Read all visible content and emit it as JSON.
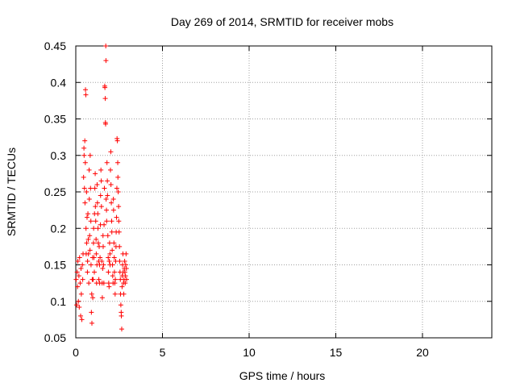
{
  "chart_data": {
    "type": "scatter",
    "title": "Day 269 of 2014, SRMTID for receiver mobs",
    "xlabel": "GPS time / hours",
    "ylabel": "SRMTID / TECUs",
    "xlim": [
      0,
      24
    ],
    "ylim": [
      0.05,
      0.45
    ],
    "x_ticks": [
      0,
      5,
      10,
      15,
      20
    ],
    "y_ticks": [
      0.05,
      0.1,
      0.15,
      0.2,
      0.25,
      0.3,
      0.35,
      0.4,
      0.45
    ],
    "x_tick_labels": [
      "0",
      "5",
      "10",
      "15",
      "20"
    ],
    "y_tick_labels": [
      "0.05",
      "0.1",
      "0.15",
      "0.2",
      "0.25",
      "0.3",
      "0.35",
      "0.4",
      "0.45"
    ],
    "grid": true,
    "grid_style": "dotted",
    "marker": "+",
    "series": [
      {
        "color": "#ff0000",
        "points": [
          [
            0.02,
            0.13
          ],
          [
            0.05,
            0.095
          ],
          [
            0.08,
            0.14
          ],
          [
            0.1,
            0.12
          ],
          [
            0.12,
            0.155
          ],
          [
            0.15,
            0.1
          ],
          [
            0.18,
            0.135
          ],
          [
            0.2,
            0.092
          ],
          [
            0.22,
            0.16
          ],
          [
            0.25,
            0.125
          ],
          [
            0.28,
            0.08
          ],
          [
            0.3,
            0.145
          ],
          [
            0.32,
            0.11
          ],
          [
            0.35,
            0.075
          ],
          [
            0.38,
            0.15
          ],
          [
            0.4,
            0.13
          ],
          [
            0.42,
            0.165
          ],
          [
            0.45,
            0.27
          ],
          [
            0.47,
            0.31
          ],
          [
            0.48,
            0.3
          ],
          [
            0.5,
            0.255
          ],
          [
            0.52,
            0.32
          ],
          [
            0.53,
            0.235
          ],
          [
            0.55,
            0.29
          ],
          [
            0.56,
            0.39
          ],
          [
            0.58,
            0.383
          ],
          [
            0.59,
            0.2
          ],
          [
            0.6,
            0.165
          ],
          [
            0.62,
            0.25
          ],
          [
            0.63,
            0.18
          ],
          [
            0.65,
            0.215
          ],
          [
            0.67,
            0.14
          ],
          [
            0.68,
            0.155
          ],
          [
            0.7,
            0.22
          ],
          [
            0.72,
            0.185
          ],
          [
            0.73,
            0.165
          ],
          [
            0.75,
            0.125
          ],
          [
            0.77,
            0.28
          ],
          [
            0.78,
            0.24
          ],
          [
            0.8,
            0.19
          ],
          [
            0.82,
            0.17
          ],
          [
            0.83,
            0.3
          ],
          [
            0.85,
            0.255
          ],
          [
            0.87,
            0.21
          ],
          [
            0.88,
            0.15
          ],
          [
            0.9,
            0.085
          ],
          [
            0.92,
            0.11
          ],
          [
            0.93,
            0.07
          ],
          [
            0.95,
            0.13
          ],
          [
            0.97,
            0.16
          ],
          [
            0.98,
            0.105
          ],
          [
            1.0,
            0.13
          ],
          [
            1.02,
            0.18
          ],
          [
            1.03,
            0.2
          ],
          [
            1.05,
            0.16
          ],
          [
            1.07,
            0.14
          ],
          [
            1.08,
            0.22
          ],
          [
            1.1,
            0.255
          ],
          [
            1.12,
            0.275
          ],
          [
            1.13,
            0.23
          ],
          [
            1.15,
            0.21
          ],
          [
            1.17,
            0.185
          ],
          [
            1.18,
            0.165
          ],
          [
            1.2,
            0.125
          ],
          [
            1.22,
            0.15
          ],
          [
            1.23,
            0.26
          ],
          [
            1.25,
            0.235
          ],
          [
            1.27,
            0.22
          ],
          [
            1.28,
            0.2
          ],
          [
            1.3,
            0.18
          ],
          [
            1.32,
            0.155
          ],
          [
            1.33,
            0.13
          ],
          [
            1.35,
            0.175
          ],
          [
            1.37,
            0.15
          ],
          [
            1.38,
            0.125
          ],
          [
            1.4,
            0.16
          ],
          [
            1.42,
            0.205
          ],
          [
            1.43,
            0.245
          ],
          [
            1.45,
            0.28
          ],
          [
            1.47,
            0.265
          ],
          [
            1.48,
            0.23
          ],
          [
            1.5,
            0.155
          ],
          [
            1.52,
            0.125
          ],
          [
            1.53,
            0.105
          ],
          [
            1.55,
            0.145
          ],
          [
            1.57,
            0.19
          ],
          [
            1.58,
            0.175
          ],
          [
            1.6,
            0.15
          ],
          [
            1.62,
            0.125
          ],
          [
            1.63,
            0.205
          ],
          [
            1.65,
            0.255
          ],
          [
            1.67,
            0.395
          ],
          [
            1.68,
            0.393
          ],
          [
            1.7,
            0.378
          ],
          [
            1.71,
            0.345
          ],
          [
            1.72,
            0.343
          ],
          [
            1.73,
            0.45
          ],
          [
            1.74,
            0.43
          ],
          [
            1.75,
            0.24
          ],
          [
            1.77,
            0.225
          ],
          [
            1.78,
            0.21
          ],
          [
            1.8,
            0.29
          ],
          [
            1.82,
            0.265
          ],
          [
            1.83,
            0.245
          ],
          [
            1.85,
            0.19
          ],
          [
            1.87,
            0.16
          ],
          [
            1.88,
            0.14
          ],
          [
            1.9,
            0.125
          ],
          [
            1.92,
            0.12
          ],
          [
            1.93,
            0.155
          ],
          [
            1.95,
            0.18
          ],
          [
            1.97,
            0.165
          ],
          [
            1.98,
            0.15
          ],
          [
            2.0,
            0.28
          ],
          [
            2.02,
            0.305
          ],
          [
            2.03,
            0.26
          ],
          [
            2.05,
            0.235
          ],
          [
            2.07,
            0.21
          ],
          [
            2.08,
            0.195
          ],
          [
            2.1,
            0.17
          ],
          [
            2.12,
            0.15
          ],
          [
            2.13,
            0.135
          ],
          [
            2.15,
            0.125
          ],
          [
            2.17,
            0.24
          ],
          [
            2.18,
            0.225
          ],
          [
            2.2,
            0.18
          ],
          [
            2.22,
            0.16
          ],
          [
            2.23,
            0.14
          ],
          [
            2.25,
            0.125
          ],
          [
            2.27,
            0.11
          ],
          [
            2.28,
            0.13
          ],
          [
            2.3,
            0.155
          ],
          [
            2.32,
            0.175
          ],
          [
            2.33,
            0.195
          ],
          [
            2.35,
            0.215
          ],
          [
            2.37,
            0.255
          ],
          [
            2.38,
            0.323
          ],
          [
            2.4,
            0.32
          ],
          [
            2.42,
            0.29
          ],
          [
            2.43,
            0.27
          ],
          [
            2.45,
            0.25
          ],
          [
            2.47,
            0.23
          ],
          [
            2.48,
            0.21
          ],
          [
            2.5,
            0.195
          ],
          [
            2.52,
            0.175
          ],
          [
            2.53,
            0.155
          ],
          [
            2.55,
            0.14
          ],
          [
            2.57,
            0.13
          ],
          [
            2.58,
            0.11
          ],
          [
            2.6,
            0.095
          ],
          [
            2.62,
            0.085
          ],
          [
            2.63,
            0.08
          ],
          [
            2.65,
            0.062
          ],
          [
            2.67,
            0.12
          ],
          [
            2.68,
            0.135
          ],
          [
            2.7,
            0.15
          ],
          [
            2.72,
            0.165
          ],
          [
            2.73,
            0.14
          ],
          [
            2.75,
            0.125
          ],
          [
            2.77,
            0.11
          ],
          [
            2.78,
            0.13
          ],
          [
            2.8,
            0.145
          ],
          [
            2.82,
            0.155
          ],
          [
            2.83,
            0.14
          ],
          [
            2.85,
            0.125
          ],
          [
            2.87,
            0.135
          ],
          [
            2.88,
            0.15
          ],
          [
            2.9,
            0.165
          ],
          [
            2.92,
            0.145
          ],
          [
            2.93,
            0.13
          ]
        ]
      }
    ]
  }
}
